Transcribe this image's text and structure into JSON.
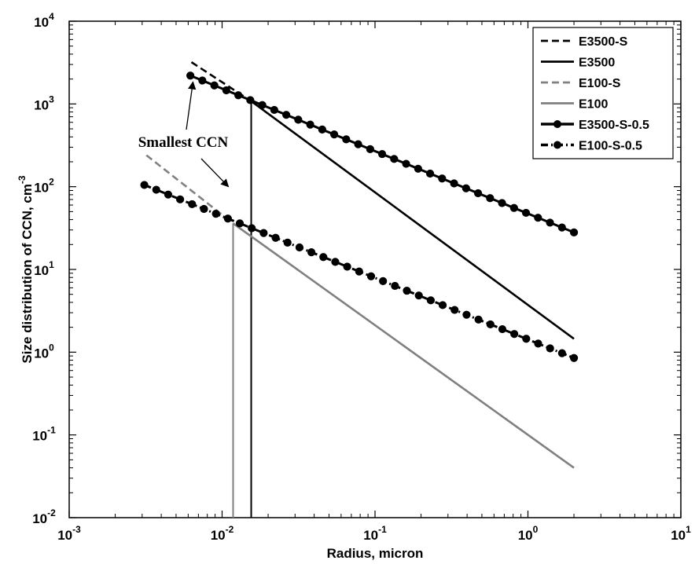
{
  "chart_data": {
    "type": "line",
    "xlabel": "Radius, micron",
    "ylabel": "Size distribution of CCN, cm",
    "ylabel_sup": "-3",
    "xscale": "log",
    "yscale": "log",
    "xlim": [
      0.001,
      10
    ],
    "ylim": [
      0.01,
      10000
    ],
    "x_ticks": [
      {
        "value": 0.001,
        "base": "10",
        "exp": "-3"
      },
      {
        "value": 0.01,
        "base": "10",
        "exp": "-2"
      },
      {
        "value": 0.1,
        "base": "10",
        "exp": "-1"
      },
      {
        "value": 1,
        "base": "10",
        "exp": "0"
      },
      {
        "value": 10,
        "base": "10",
        "exp": "1"
      }
    ],
    "y_ticks": [
      {
        "value": 0.01,
        "base": "10",
        "exp": "-2"
      },
      {
        "value": 0.1,
        "base": "10",
        "exp": "-1"
      },
      {
        "value": 1,
        "base": "10",
        "exp": "0"
      },
      {
        "value": 10,
        "base": "10",
        "exp": "1"
      },
      {
        "value": 100,
        "base": "10",
        "exp": "2"
      },
      {
        "value": 1000,
        "base": "10",
        "exp": "3"
      },
      {
        "value": 10000,
        "base": "10",
        "exp": "4"
      }
    ],
    "legend_position": "top-right",
    "series": [
      {
        "name": "E3500-S",
        "color": "#000000",
        "style": "dashed",
        "marker": "none",
        "points": [
          [
            0.0063,
            3200
          ],
          [
            0.0155,
            1080
          ]
        ]
      },
      {
        "name": "E3500",
        "color": "#000000",
        "style": "solid",
        "marker": "none",
        "points": [
          [
            0.0155,
            1080
          ],
          [
            2.0,
            1.45
          ]
        ],
        "cutoff": {
          "x": 0.0155,
          "from": 0.01,
          "to": 1080
        }
      },
      {
        "name": "E100-S",
        "color": "#808080",
        "style": "dashed",
        "marker": "none",
        "points": [
          [
            0.0032,
            240
          ],
          [
            0.0118,
            36
          ]
        ]
      },
      {
        "name": "E100",
        "color": "#808080",
        "style": "solid",
        "marker": "none",
        "points": [
          [
            0.0118,
            36
          ],
          [
            2.0,
            0.04
          ]
        ],
        "cutoff": {
          "x": 0.0118,
          "from": 0.01,
          "to": 36
        }
      },
      {
        "name": "E3500-S-0.5",
        "color": "#000000",
        "style": "solid",
        "marker": "circle",
        "points": [
          [
            0.0062,
            2200
          ],
          [
            2.0,
            28
          ]
        ]
      },
      {
        "name": "E100-S-0.5",
        "color": "#000000",
        "style": "dashdot",
        "marker": "circle",
        "points": [
          [
            0.0031,
            105
          ],
          [
            2.0,
            0.85
          ]
        ]
      }
    ],
    "annotations": [
      {
        "text": "Smallest CCN",
        "arrows_to": [
          [
            0.0063,
            2200
          ],
          [
            0.011,
            100
          ]
        ]
      }
    ]
  }
}
